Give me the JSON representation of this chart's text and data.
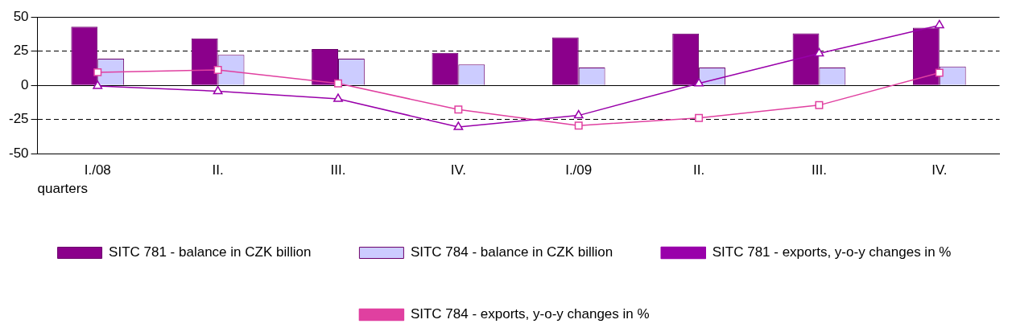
{
  "chart_data": {
    "type": "bar",
    "xlabel": "quarters",
    "categories": [
      "I./08",
      "II.",
      "III.",
      "IV.",
      "I./09",
      "II.",
      "III.",
      "IV."
    ],
    "series": [
      {
        "name": "SITC 781 - balance in CZK billion",
        "color": "#8b008b",
        "values": [
          42.9,
          34.4,
          26.6,
          23.8,
          35.1,
          37.9,
          38,
          42.2
        ]
      },
      {
        "name": "SITC 784 - balance in CZK billion",
        "color": "#ccccff",
        "values": [
          19.5,
          22.3,
          19.5,
          15.2,
          13.1,
          13.1,
          13.1,
          13.8
        ]
      },
      {
        "name": "SITC 781 - exports, y-o-y changes in %",
        "type": "line",
        "color": "#9900aa",
        "marker": "triangle",
        "values": [
          -0.4,
          -4.3,
          -9.9,
          -30.5,
          -22,
          1.4,
          23.4,
          44
        ]
      },
      {
        "name": "SITC 784 - exports, y-o-y changes in %",
        "type": "line",
        "color": "#e040a0",
        "marker": "square",
        "values": [
          9.6,
          11.3,
          1.4,
          -17.7,
          -29.4,
          -23.8,
          -14.5,
          9.2
        ]
      }
    ],
    "ylim": [
      -50,
      50
    ],
    "yticks": [
      -50,
      -25,
      0,
      25,
      50
    ],
    "grid": "y",
    "legend": "bottom"
  }
}
